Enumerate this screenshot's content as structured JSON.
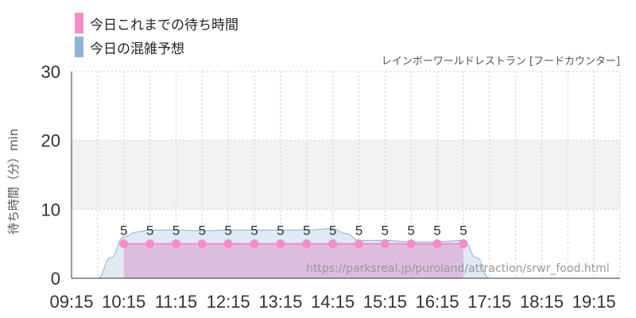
{
  "legend": {
    "actual_label": "今日これまでの待ち時間",
    "forecast_label": "今日の混雑予想"
  },
  "venue": "レインボーワールドレストラン [フードカウンター]",
  "watermark": "https://parksreal.jp/puroland/attraction/srwr_food.html",
  "colors": {
    "actual": "#f58cc8",
    "actual_bar": "#dcb8dc",
    "forecast": "#8fb3d6",
    "forecast_fill": "#d9e6f2",
    "band": "#f2f2f2"
  },
  "chart_data": {
    "type": "area",
    "ylabel": "待ち時間（分）min",
    "ylim": [
      0,
      30
    ],
    "yticks": [
      0,
      10,
      20,
      30
    ],
    "xlim": [
      "09:15",
      "19:45"
    ],
    "xticks": [
      "09:15",
      "10:15",
      "11:15",
      "12:15",
      "13:15",
      "14:15",
      "15:15",
      "16:15",
      "17:15",
      "18:15",
      "19:15"
    ],
    "highlight_band": [
      10,
      20
    ],
    "grid": true,
    "series": [
      {
        "name": "今日これまでの待ち時間",
        "type": "line+points",
        "x": [
          "10:15",
          "10:45",
          "11:15",
          "11:45",
          "12:15",
          "12:45",
          "13:15",
          "13:45",
          "14:15",
          "14:45",
          "15:15",
          "15:45",
          "16:15",
          "16:45"
        ],
        "values": [
          5,
          5,
          5,
          5,
          5,
          5,
          5,
          5,
          5,
          5,
          5,
          5,
          5,
          5
        ]
      },
      {
        "name": "今日の混雑予想",
        "type": "area",
        "x": [
          "09:15",
          "09:45",
          "10:00",
          "10:15",
          "10:30",
          "10:45",
          "11:15",
          "11:45",
          "12:15",
          "12:45",
          "13:15",
          "13:45",
          "14:15",
          "14:30",
          "14:45",
          "15:15",
          "15:45",
          "16:15",
          "16:45",
          "17:00",
          "17:15",
          "17:45",
          "18:15",
          "18:45",
          "19:15",
          "19:45"
        ],
        "values": [
          0,
          0,
          3,
          6,
          6.7,
          7,
          7,
          6.9,
          7,
          7,
          7,
          7,
          7.2,
          6.5,
          5.5,
          5.5,
          5.3,
          5.3,
          5.5,
          3,
          0,
          0,
          0,
          0,
          0,
          0
        ]
      }
    ]
  }
}
